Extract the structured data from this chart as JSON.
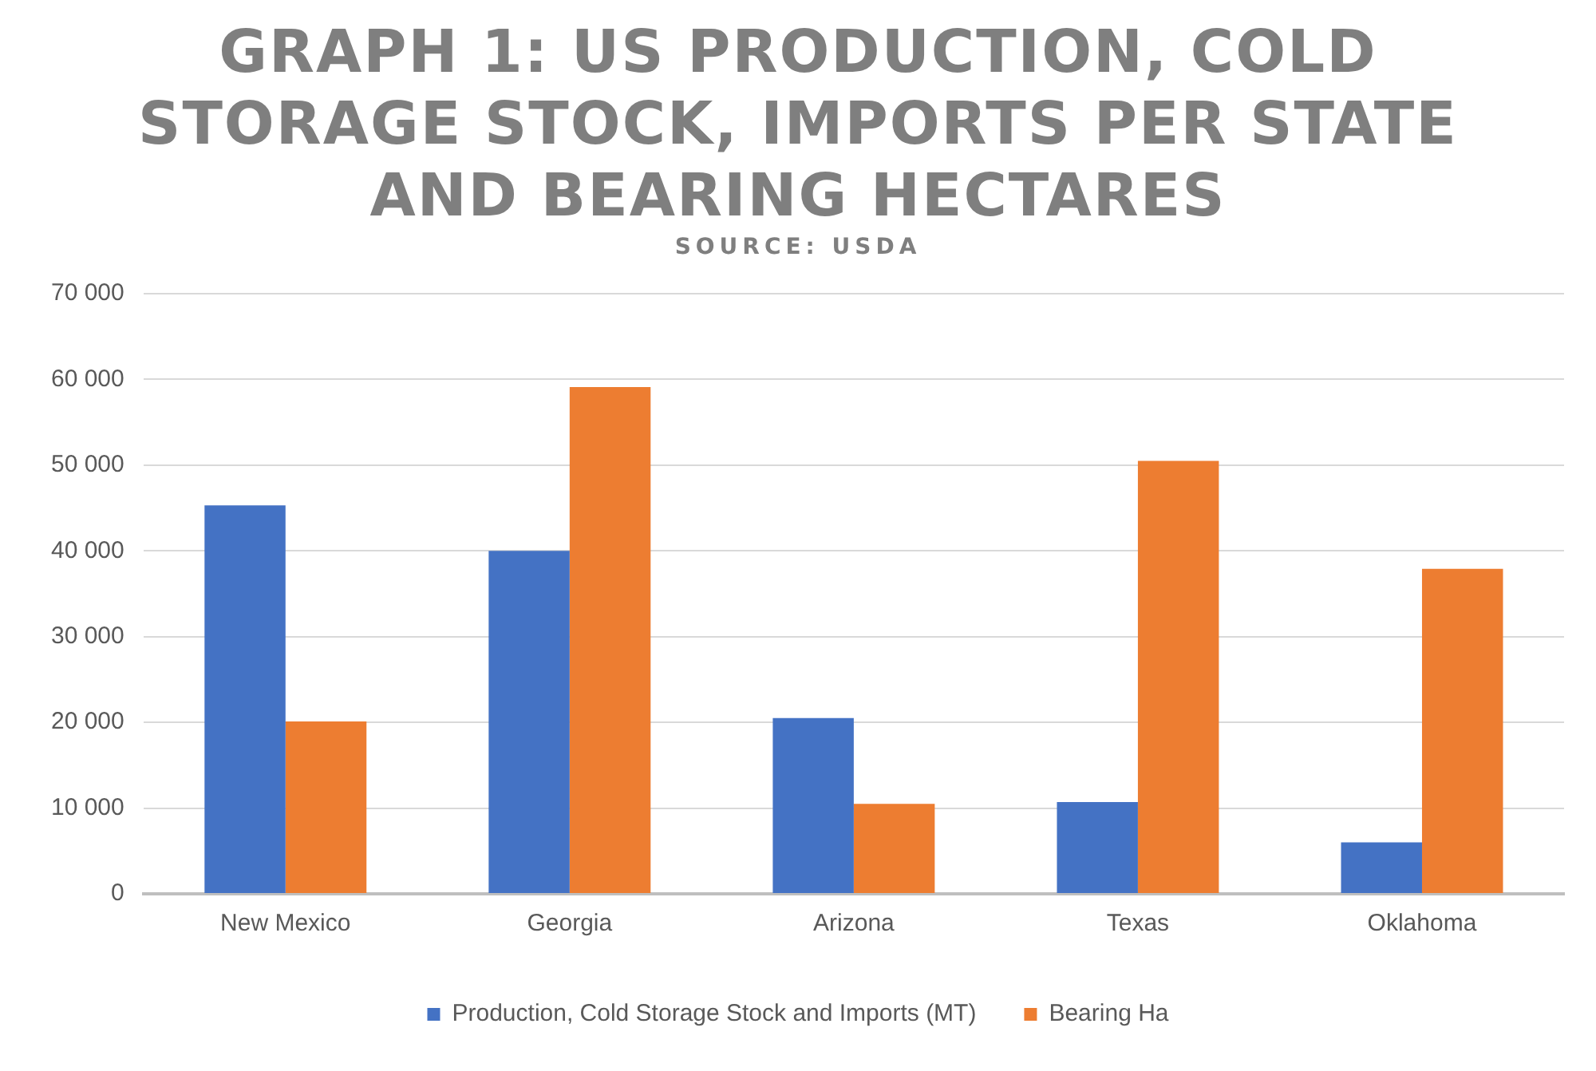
{
  "chart_data": {
    "type": "bar",
    "title": "GRAPH 1: US PRODUCTION, COLD STORAGE STOCK, IMPORTS PER STATE AND BEARING HECTARES",
    "subtitle": "SOURCE: USDA",
    "categories": [
      "New Mexico",
      "Georgia",
      "Arizona",
      "Texas",
      "Oklahoma"
    ],
    "series": [
      {
        "name": "Production, Cold Storage Stock and Imports (MT)",
        "color": "#4472c4",
        "values": [
          45300,
          40000,
          20500,
          10700,
          6000
        ]
      },
      {
        "name": "Bearing Ha",
        "color": "#ed7d31",
        "values": [
          20100,
          59100,
          10500,
          50500,
          37900
        ]
      }
    ],
    "ylim": [
      0,
      70000
    ],
    "yticks": [
      {
        "value": 0,
        "label": "0"
      },
      {
        "value": 10000,
        "label": "10 000"
      },
      {
        "value": 20000,
        "label": "20 000"
      },
      {
        "value": 30000,
        "label": "30 000"
      },
      {
        "value": 40000,
        "label": "40 000"
      },
      {
        "value": 50000,
        "label": "50 000"
      },
      {
        "value": 60000,
        "label": "60 000"
      },
      {
        "value": 70000,
        "label": "70 000"
      }
    ],
    "grid": "y",
    "legend": "bottom"
  }
}
